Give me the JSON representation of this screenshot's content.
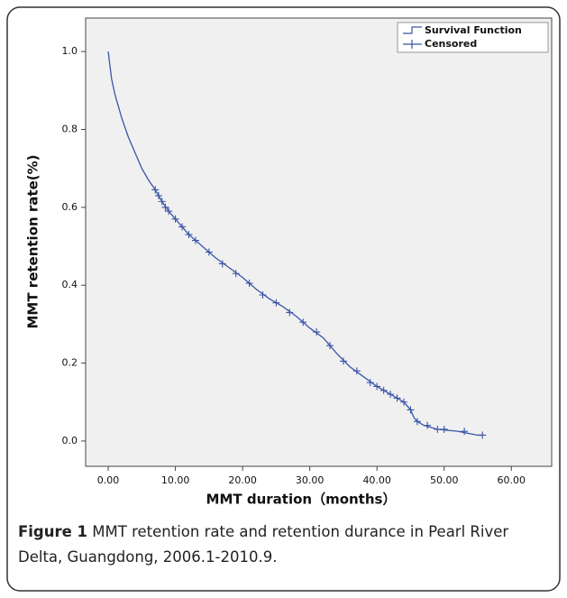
{
  "chart_data": {
    "type": "line",
    "ylabel": "MMT retention rate(%)",
    "xlabel": "MMT duration（months）",
    "caption_label": "Figure 1",
    "caption": "MMT retention rate and retention durance in Pearl River Delta, Guangdong, 2006.1-2010.9.",
    "xlim": [
      -3.36,
      66.0
    ],
    "ylim": [
      -0.065,
      1.086
    ],
    "xticks": [
      {
        "value": 0,
        "label": "0.00"
      },
      {
        "value": 10,
        "label": "10.00"
      },
      {
        "value": 20,
        "label": "20.00"
      },
      {
        "value": 30,
        "label": "30.00"
      },
      {
        "value": 40,
        "label": "40.00"
      },
      {
        "value": 50,
        "label": "50.00"
      },
      {
        "value": 60,
        "label": "60.00"
      }
    ],
    "yticks": [
      {
        "value": 0,
        "label": "0.0"
      },
      0.2,
      0.4,
      0.6,
      0.8,
      {
        "value": 1,
        "label": "1.0"
      }
    ],
    "legend": "upper right",
    "series": [
      {
        "name": "Survival Function",
        "color": "#3a54a8",
        "style": "line",
        "x": [
          0,
          0.5,
          1,
          2,
          3,
          4,
          5,
          6,
          7,
          8,
          9,
          10,
          12,
          14,
          16,
          18,
          20,
          22,
          24,
          26,
          28,
          30,
          32,
          34,
          36,
          38,
          40,
          42,
          44,
          45,
          45.5,
          46,
          47,
          49,
          52,
          55,
          55.7
        ],
        "values": [
          1.0,
          0.93,
          0.89,
          0.83,
          0.78,
          0.74,
          0.7,
          0.67,
          0.645,
          0.615,
          0.59,
          0.57,
          0.53,
          0.5,
          0.47,
          0.445,
          0.42,
          0.39,
          0.365,
          0.345,
          0.32,
          0.29,
          0.265,
          0.225,
          0.19,
          0.165,
          0.14,
          0.12,
          0.1,
          0.08,
          0.06,
          0.05,
          0.04,
          0.03,
          0.025,
          0.015,
          0.015
        ]
      },
      {
        "name": "Censored",
        "color": "#3a54a8",
        "style": "markers",
        "x": [
          7,
          7.5,
          8,
          8.5,
          9,
          10,
          11,
          12,
          13,
          15,
          17,
          19,
          21,
          23,
          25,
          27,
          29,
          31,
          33,
          35,
          37,
          39,
          40,
          41,
          42,
          43,
          44,
          45,
          46,
          47.5,
          49,
          50,
          53,
          55.7
        ],
        "values": [
          0.645,
          0.63,
          0.615,
          0.6,
          0.59,
          0.57,
          0.55,
          0.53,
          0.515,
          0.485,
          0.455,
          0.43,
          0.405,
          0.375,
          0.355,
          0.33,
          0.305,
          0.28,
          0.245,
          0.205,
          0.18,
          0.15,
          0.14,
          0.13,
          0.12,
          0.11,
          0.1,
          0.08,
          0.05,
          0.04,
          0.03,
          0.03,
          0.025,
          0.015
        ]
      }
    ]
  }
}
